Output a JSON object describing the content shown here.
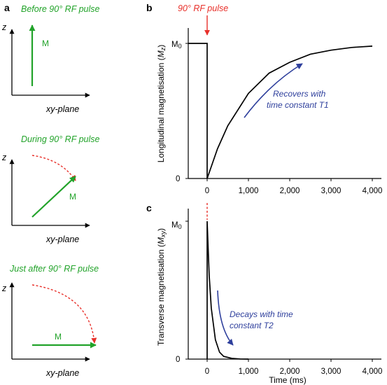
{
  "panel_a": {
    "letter": "a",
    "diagrams": [
      {
        "caption": "Before 90° RF pulse",
        "z_label": "z",
        "xy_label": "xy-plane",
        "m_label": "M"
      },
      {
        "caption": "During 90° RF pulse",
        "z_label": "z",
        "xy_label": "xy-plane",
        "m_label": "M"
      },
      {
        "caption": "Just after 90° RF pulse",
        "z_label": "z",
        "xy_label": "xy-plane",
        "m_label": "M"
      }
    ]
  },
  "panel_b": {
    "letter": "b",
    "rf_label": "90° RF pulse",
    "ylabel_main": "Longitudinal magnetisation (",
    "ylabel_sym": "M",
    "ylabel_sub": "z",
    "ylabel_close": ")",
    "m0_main": "M",
    "m0_sub": "0",
    "zero_label": "0",
    "annotation_line1": "Recovers with",
    "annotation_line2": "time constant T1",
    "colors": {
      "annotation": "#2e3f9c",
      "rf": "#e8302a",
      "curve": "#000000"
    }
  },
  "panel_c": {
    "letter": "c",
    "ylabel_main": "Transverse magnetisation (",
    "ylabel_sym": "M",
    "ylabel_sub": "xy",
    "ylabel_close": ")",
    "m0_main": "M",
    "m0_sub": "0",
    "zero_label": "0",
    "xlabel": "Time (ms)",
    "annotation_line1": "Decays with time",
    "annotation_line2": "constant T2",
    "colors": {
      "annotation": "#2e3f9c",
      "rf": "#e8302a",
      "curve": "#000000"
    }
  },
  "chart_data": [
    {
      "type": "line",
      "panel": "b",
      "xlabel": "",
      "ylabel": "Longitudinal magnetisation (Mz)",
      "x_ticks": [
        "0",
        "1,000",
        "2,000",
        "3,000",
        "4,000"
      ],
      "xlim": [
        0,
        4000
      ],
      "ylim": [
        0,
        1
      ],
      "series": [
        {
          "x": [
            -500,
            0,
            0,
            250,
            500,
            1000,
            1500,
            2000,
            2500,
            3000,
            3500,
            4000
          ],
          "y": [
            1,
            1,
            0,
            0.22,
            0.39,
            0.63,
            0.78,
            0.86,
            0.92,
            0.95,
            0.97,
            0.98
          ]
        }
      ]
    },
    {
      "type": "line",
      "panel": "c",
      "xlabel": "Time (ms)",
      "ylabel": "Transverse magnetisation (Mxy)",
      "x_ticks": [
        "0",
        "1,000",
        "2,000",
        "3,000",
        "4,000"
      ],
      "xlim": [
        0,
        4000
      ],
      "ylim": [
        0,
        1
      ],
      "series": [
        {
          "x": [
            0,
            0,
            50,
            100,
            200,
            300,
            400,
            600,
            800,
            1000
          ],
          "y": [
            0,
            1,
            0.61,
            0.37,
            0.14,
            0.05,
            0.02,
            0.005,
            0.001,
            0
          ]
        }
      ]
    }
  ]
}
